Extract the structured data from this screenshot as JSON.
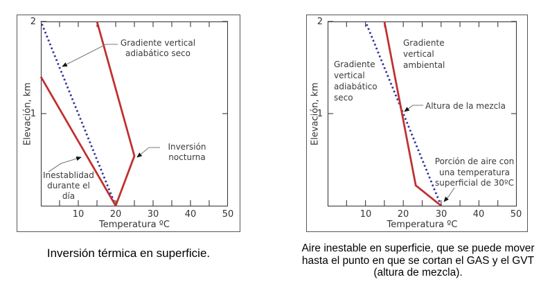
{
  "page": {
    "background": "#ffffff"
  },
  "colors": {
    "line_red": "#c03030",
    "line_navy": "#32329b",
    "leader_gray": "#7a7a7a",
    "axis": "#3a3a3a",
    "frame": "#555555",
    "label_text": "#3a3a3a"
  },
  "chart_data": [
    {
      "type": "line",
      "title": "Inversión térmica en superficie.",
      "xlabel": "Temperatura ºC",
      "ylabel": "Elevación, km",
      "xlim": [
        0,
        50
      ],
      "ylim": [
        0,
        2
      ],
      "xticks": [
        10,
        20,
        30,
        40,
        50
      ],
      "xticks_minor": [
        5,
        10,
        15,
        20,
        25,
        30,
        35,
        40,
        45
      ],
      "yticks": [
        1,
        2
      ],
      "grid": false,
      "legend": "none",
      "series": [
        {
          "id": "gradiente-adiabatico-seco",
          "label": "Gradiente vertical adiabático seco",
          "style": "dashed",
          "color": "#32329b",
          "points": [
            [
              20,
              0
            ],
            [
              0,
              2
            ]
          ]
        },
        {
          "id": "inestablidad-dia",
          "label": "Inestablidad durante el día",
          "style": "solid",
          "color": "#c03030",
          "points": [
            [
              20,
              0
            ],
            [
              0,
              1.4
            ]
          ]
        },
        {
          "id": "inversion-nocturna",
          "label": "Inversión nocturna",
          "style": "solid",
          "color": "#c03030",
          "points": [
            [
              20,
              0
            ],
            [
              25,
              0.54
            ],
            [
              15,
              2
            ]
          ]
        }
      ],
      "annotations": [
        {
          "id": "gradiente-seco-label",
          "text": "Gradiente vertical\nadiabático seco",
          "points_to": "dashed GAS line"
        },
        {
          "id": "inversion-nocturna-label",
          "text": "Inversión\nnocturna",
          "points_to_xy": [
            25,
            0.54
          ]
        },
        {
          "id": "inestablidad-label",
          "text": "Inestablidad\ndurante el\ndía",
          "points_to": "steep red day line"
        }
      ]
    },
    {
      "type": "line",
      "title": "Aire inestable en superficie, que se puede mover\nhasta el punto  en que se cortan el GAS y el GVT\n(altura  de mezcla).",
      "xlabel": "Temperatura ºC",
      "ylabel": "Elevación, km",
      "xlim": [
        0,
        50
      ],
      "ylim": [
        0,
        2
      ],
      "xticks": [
        10,
        20,
        30,
        40,
        50
      ],
      "xticks_minor": [
        5,
        10,
        15,
        20,
        25,
        30,
        35,
        40,
        45
      ],
      "yticks": [
        1,
        2
      ],
      "grid": false,
      "legend": "none",
      "series": [
        {
          "id": "gradiente-adiabatico-seco",
          "label": "Gradiente vertical adiabático seco",
          "style": "dashed",
          "color": "#32329b",
          "points": [
            [
              30,
              0
            ],
            [
              10,
              2
            ]
          ]
        },
        {
          "id": "gradiente-ambiental",
          "label": "Gradiente vertical ambiental",
          "style": "solid",
          "color": "#c03030",
          "points": [
            [
              30,
              0
            ],
            [
              23.3,
              0.22
            ],
            [
              15,
              2
            ]
          ]
        }
      ],
      "annotations": [
        {
          "id": "gradiente-seco-label",
          "text": "Gradiente\nvertical\nadiabático\nseco",
          "points_to": "dashed GAS line"
        },
        {
          "id": "gradiente-ambiental-label",
          "text": "Gradiente\nvertical\nambiental",
          "points_to": "red GVT line"
        },
        {
          "id": "altura-mezcla-label",
          "text": "Altura de la mezcla",
          "points_to_xy": [
            19.5,
            1.05
          ]
        },
        {
          "id": "porcion-aire-label",
          "text": "Porción de aire con\nuna temperatura\nsuperficial de 30ºC",
          "points_to_xy": [
            30,
            0
          ]
        }
      ]
    }
  ]
}
